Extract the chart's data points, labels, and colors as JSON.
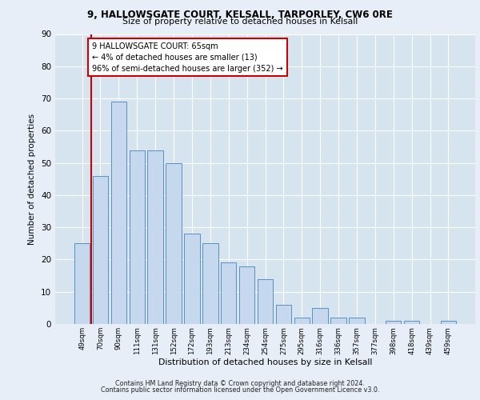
{
  "title1": "9, HALLOWSGATE COURT, KELSALL, TARPORLEY, CW6 0RE",
  "title2": "Size of property relative to detached houses in Kelsall",
  "xlabel": "Distribution of detached houses by size in Kelsall",
  "ylabel": "Number of detached properties",
  "categories": [
    "49sqm",
    "70sqm",
    "90sqm",
    "111sqm",
    "131sqm",
    "152sqm",
    "172sqm",
    "193sqm",
    "213sqm",
    "234sqm",
    "254sqm",
    "275sqm",
    "295sqm",
    "316sqm",
    "336sqm",
    "357sqm",
    "377sqm",
    "398sqm",
    "418sqm",
    "439sqm",
    "459sqm"
  ],
  "values": [
    25,
    46,
    69,
    54,
    54,
    50,
    28,
    25,
    19,
    18,
    14,
    6,
    2,
    5,
    2,
    2,
    0,
    1,
    1,
    0,
    1
  ],
  "bar_color": "#c5d8ed",
  "bar_edge_color": "#5a8fc0",
  "highlight_line_color": "#cc0000",
  "annotation_text": "9 HALLOWSGATE COURT: 65sqm\n← 4% of detached houses are smaller (13)\n96% of semi-detached houses are larger (352) →",
  "annotation_box_color": "#ffffff",
  "annotation_box_edge_color": "#cc0000",
  "ylim": [
    0,
    90
  ],
  "yticks": [
    0,
    10,
    20,
    30,
    40,
    50,
    60,
    70,
    80,
    90
  ],
  "footer1": "Contains HM Land Registry data © Crown copyright and database right 2024.",
  "footer2": "Contains public sector information licensed under the Open Government Licence v3.0.",
  "bg_color": "#e8eef7",
  "plot_bg_color": "#d6e4f0"
}
